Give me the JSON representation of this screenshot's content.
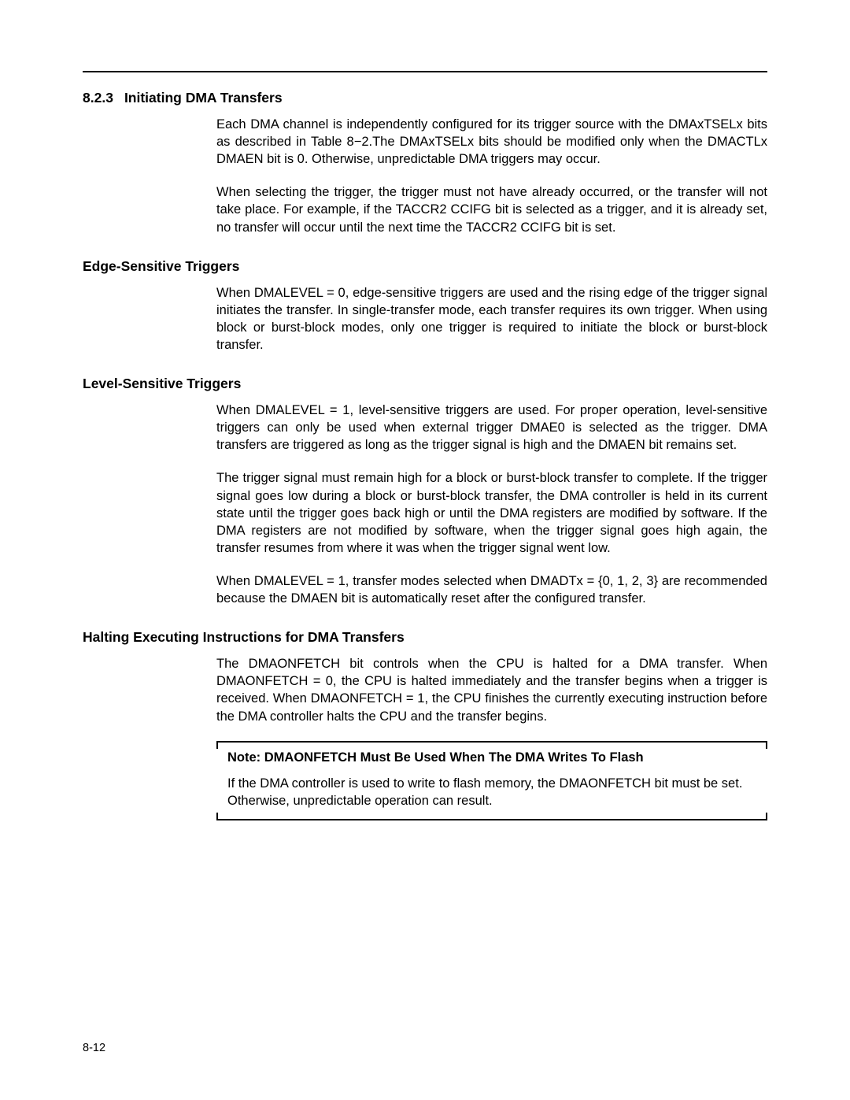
{
  "page_number": "8-12",
  "hr_color": "#000000",
  "section": {
    "number": "8.2.3",
    "title": "Initiating DMA Transfers",
    "paragraphs": [
      "Each DMA channel is independently configured for its trigger source with the DMAxTSELx bits as described in Table 8−2.The DMAxTSELx bits should be modified only when the DMACTLx DMAEN bit is 0. Otherwise, unpredictable DMA triggers may occur.",
      "When selecting the trigger, the trigger must not have already occurred, or the transfer will not take place. For example, if the TACCR2 CCIFG bit is selected as a trigger, and it is already set, no transfer will occur until the next time the TACCR2 CCIFG bit is set."
    ]
  },
  "subsections": [
    {
      "title": "Edge-Sensitive Triggers",
      "paragraphs": [
        "When DMALEVEL = 0, edge-sensitive triggers are used and the rising edge of the trigger signal initiates the transfer. In single-transfer mode, each transfer requires its own trigger. When using block or burst-block modes, only one trigger is required to initiate the block or burst-block transfer."
      ]
    },
    {
      "title": "Level-Sensitive Triggers",
      "paragraphs": [
        "When DMALEVEL = 1, level-sensitive triggers are used. For proper operation, level-sensitive triggers can only be used when external trigger DMAE0 is selected as the trigger. DMA transfers are triggered as long as the trigger signal is high and the DMAEN bit remains set.",
        "The trigger signal must remain high for a block or burst-block transfer to complete. If the trigger signal goes low during a block or burst-block transfer, the DMA controller is held in its current state until the trigger goes back high or until the DMA registers are modified by software. If the DMA registers are not modified by software, when the trigger signal goes high again, the transfer resumes from where it was when the trigger signal went low.",
        "When DMALEVEL = 1, transfer modes selected when DMADTx = {0, 1, 2, 3} are recommended because the DMAEN bit is automatically reset after the configured transfer."
      ]
    },
    {
      "title": "Halting Executing Instructions for DMA Transfers",
      "paragraphs": [
        "The DMAONFETCH bit controls when the CPU is halted for a DMA transfer. When DMAONFETCH = 0, the CPU is halted immediately and the transfer begins when a trigger is received. When DMAONFETCH = 1, the CPU finishes the currently executing instruction before the DMA controller halts the CPU and the transfer begins."
      ]
    }
  ],
  "note": {
    "title": "Note: DMAONFETCH Must Be Used When The DMA Writes To Flash",
    "body": "If the DMA controller is used to write to flash memory, the DMAONFETCH bit must be set. Otherwise, unpredictable operation can result."
  },
  "typography": {
    "body_font_size_pt": 12,
    "heading_font_size_pt": 13,
    "body_color": "#000000",
    "background_color": "#ffffff"
  }
}
